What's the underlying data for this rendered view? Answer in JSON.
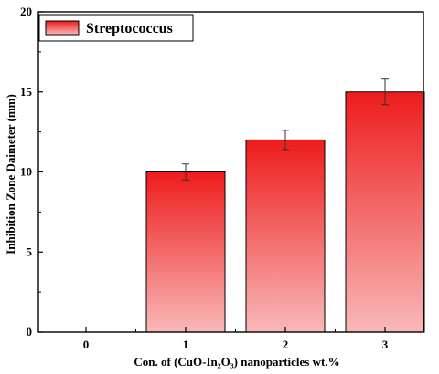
{
  "chart_data": {
    "type": "bar",
    "categories": [
      "0",
      "1",
      "2",
      "3"
    ],
    "series": [
      {
        "name": "Streptococcus",
        "values": [
          0,
          10,
          12,
          15
        ],
        "errors": [
          0,
          0.5,
          0.6,
          0.8
        ]
      }
    ],
    "xlabel": "Con. of  (CuO-In₂O₃) nanoparticles wt.%",
    "ylabel": "Inhibition Zone Daimeter (mm)",
    "ylim": [
      0,
      20
    ],
    "yticks": [
      0,
      5,
      10,
      15,
      20
    ],
    "grid": false,
    "legend_position": "top-left",
    "colors": {
      "bar_top": "#ee1c1c",
      "bar_bottom": "#f9b8b8",
      "bar_edge": "#000000"
    }
  }
}
